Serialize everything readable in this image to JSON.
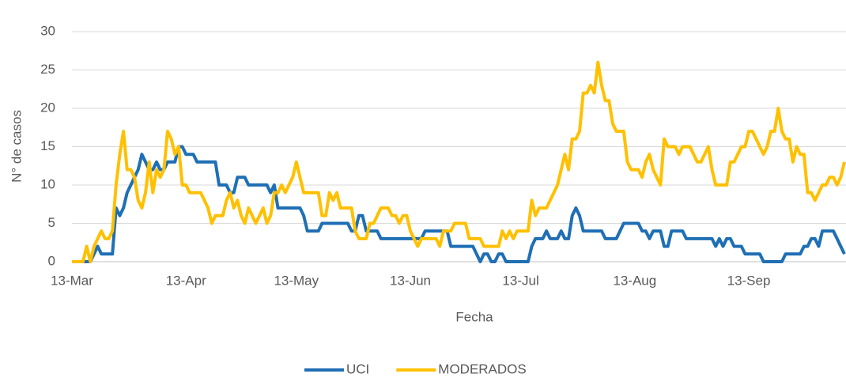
{
  "chart_data": {
    "type": "line",
    "xlabel": "Fecha",
    "ylabel": "N° de casos",
    "categories": [
      "13-Mar",
      null,
      null,
      null,
      null,
      null,
      null,
      null,
      null,
      null,
      null,
      null,
      null,
      null,
      null,
      null,
      null,
      null,
      null,
      null,
      null,
      null,
      null,
      null,
      null,
      null,
      null,
      null,
      null,
      null,
      null,
      "13-Apr",
      null,
      null,
      null,
      null,
      null,
      null,
      null,
      null,
      null,
      null,
      null,
      null,
      null,
      null,
      null,
      null,
      null,
      null,
      null,
      null,
      null,
      null,
      null,
      null,
      null,
      null,
      null,
      null,
      null,
      "13-May",
      null,
      null,
      null,
      null,
      null,
      null,
      null,
      null,
      null,
      null,
      null,
      null,
      null,
      null,
      null,
      null,
      null,
      null,
      null,
      null,
      null,
      null,
      null,
      null,
      null,
      null,
      null,
      null,
      null,
      null,
      "13-Jun",
      null,
      null,
      null,
      null,
      null,
      null,
      null,
      null,
      null,
      null,
      null,
      null,
      null,
      null,
      null,
      null,
      null,
      null,
      null,
      null,
      null,
      null,
      null,
      null,
      null,
      null,
      null,
      null,
      null,
      "13-Jul",
      null,
      null,
      null,
      null,
      null,
      null,
      null,
      null,
      null,
      null,
      null,
      null,
      null,
      null,
      null,
      null,
      null,
      null,
      null,
      null,
      null,
      null,
      null,
      null,
      null,
      null,
      null,
      null,
      null,
      null,
      "13-Aug",
      null,
      null,
      null,
      null,
      null,
      null,
      null,
      null,
      null,
      null,
      null,
      null,
      null,
      null,
      null,
      null,
      null,
      null,
      null,
      null,
      null,
      null,
      null,
      null,
      null,
      null,
      null,
      null,
      null,
      null,
      "13-Sep",
      null,
      null,
      null,
      null,
      null,
      null,
      null,
      null,
      null,
      null,
      null,
      null,
      null,
      null,
      null,
      null,
      null,
      null,
      null,
      null,
      null,
      null,
      null,
      null,
      null,
      null
    ],
    "series": [
      {
        "name": "UCI",
        "color": "#1f6fb5",
        "values": [
          0,
          0,
          0,
          0,
          0,
          0,
          1,
          2,
          1,
          1,
          1,
          1,
          7,
          6,
          7,
          9,
          10,
          11,
          12,
          14,
          13,
          12,
          12,
          13,
          12,
          12,
          13,
          13,
          13,
          15,
          15,
          14,
          14,
          14,
          13,
          13,
          13,
          13,
          13,
          13,
          10,
          10,
          10,
          9,
          9,
          11,
          11,
          11,
          10,
          10,
          10,
          10,
          10,
          10,
          9,
          10,
          7,
          7,
          7,
          7,
          7,
          7,
          7,
          6,
          4,
          4,
          4,
          4,
          5,
          5,
          5,
          5,
          5,
          5,
          5,
          5,
          4,
          4,
          6,
          6,
          4,
          4,
          4,
          4,
          3,
          3,
          3,
          3,
          3,
          3,
          3,
          3,
          3,
          3,
          3,
          3,
          4,
          4,
          4,
          4,
          4,
          4,
          4,
          2,
          2,
          2,
          2,
          2,
          2,
          2,
          1,
          0,
          1,
          1,
          0,
          0,
          1,
          1,
          0,
          0,
          0,
          0,
          0,
          0,
          0,
          2,
          3,
          3,
          3,
          4,
          3,
          3,
          3,
          4,
          3,
          3,
          6,
          7,
          6,
          4,
          4,
          4,
          4,
          4,
          4,
          3,
          3,
          3,
          3,
          4,
          5,
          5,
          5,
          5,
          5,
          4,
          4,
          3,
          4,
          4,
          4,
          2,
          2,
          4,
          4,
          4,
          4,
          3,
          3,
          3,
          3,
          3,
          3,
          3,
          3,
          2,
          3,
          2,
          3,
          3,
          2,
          2,
          2,
          1,
          1,
          1,
          1,
          1,
          0,
          0,
          0,
          0,
          0,
          0,
          1,
          1,
          1,
          1,
          1,
          2,
          2,
          3,
          3,
          2,
          4,
          4,
          4,
          4,
          3,
          2,
          1
        ]
      },
      {
        "name": "MODERADOS",
        "color": "#ffc000",
        "values": [
          0,
          0,
          0,
          0,
          2,
          0,
          2,
          3,
          4,
          3,
          3,
          4,
          10,
          14,
          17,
          12,
          12,
          11,
          8,
          7,
          9,
          13,
          9,
          12,
          11,
          12,
          17,
          16,
          14,
          15,
          10,
          10,
          9,
          9,
          9,
          9,
          8,
          7,
          5,
          6,
          6,
          6,
          8,
          9,
          7,
          8,
          6,
          5,
          7,
          6,
          5,
          6,
          7,
          5,
          6,
          9,
          9,
          10,
          9,
          10,
          11,
          13,
          11,
          9,
          9,
          9,
          9,
          9,
          6,
          6,
          9,
          8,
          9,
          7,
          7,
          7,
          7,
          4,
          3,
          3,
          3,
          5,
          5,
          6,
          7,
          7,
          7,
          6,
          6,
          5,
          6,
          6,
          4,
          3,
          2,
          3,
          3,
          3,
          3,
          3,
          2,
          4,
          4,
          4,
          5,
          5,
          5,
          5,
          3,
          3,
          3,
          3,
          2,
          2,
          2,
          2,
          2,
          4,
          3,
          4,
          3,
          4,
          4,
          4,
          4,
          8,
          6,
          7,
          7,
          7,
          8,
          9,
          10,
          12,
          14,
          12,
          16,
          16,
          17,
          22,
          22,
          23,
          22,
          26,
          23,
          21,
          21,
          18,
          17,
          17,
          17,
          13,
          12,
          12,
          12,
          11,
          13,
          14,
          12,
          11,
          10,
          16,
          15,
          15,
          15,
          14,
          15,
          15,
          15,
          14,
          13,
          13,
          14,
          15,
          12,
          10,
          10,
          10,
          10,
          13,
          13,
          14,
          15,
          15,
          17,
          17,
          16,
          15,
          14,
          15,
          17,
          17,
          20,
          17,
          16,
          16,
          13,
          15,
          14,
          14,
          9,
          9,
          8,
          9,
          10,
          10,
          11,
          11,
          10,
          11,
          13
        ]
      }
    ],
    "ylim": [
      0,
      30
    ],
    "yticks": [
      0,
      5,
      10,
      15,
      20,
      25,
      30
    ],
    "grid": true,
    "legend": "bottom"
  }
}
